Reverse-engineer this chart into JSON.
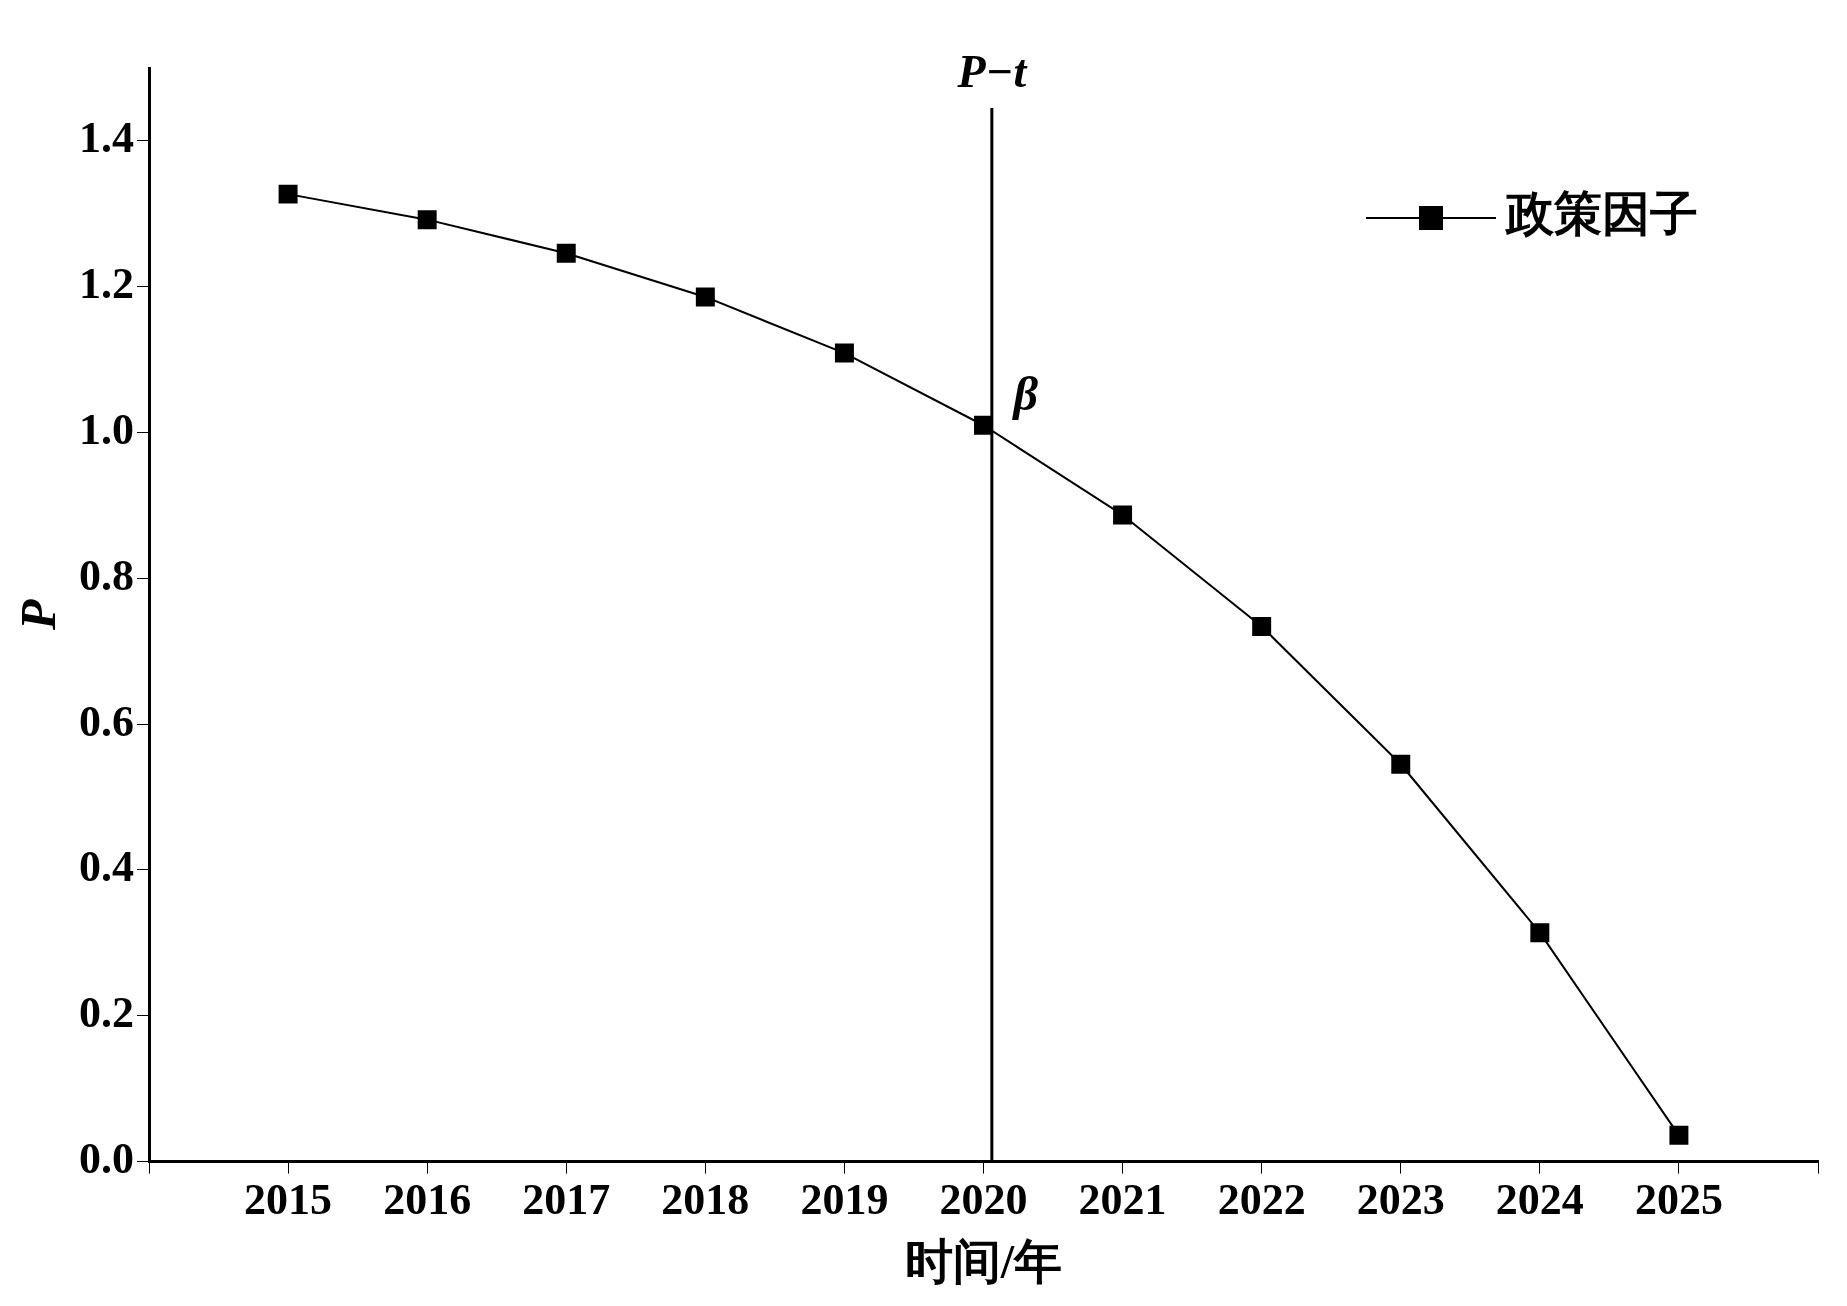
{
  "chart_data": {
    "type": "line",
    "xlabel": "时间/年",
    "ylabel": "P",
    "x": [
      2015,
      2016,
      2017,
      2018,
      2019,
      2020,
      2021,
      2022,
      2023,
      2024,
      2025
    ],
    "series": [
      {
        "name": "政策因子",
        "color": "#000000",
        "values": [
          1.327,
          1.292,
          1.246,
          1.186,
          1.109,
          1.01,
          0.887,
          0.734,
          0.545,
          0.314,
          0.036
        ]
      }
    ],
    "xlim": [
      2014,
      2026
    ],
    "xticks": [
      {
        "value": 2014,
        "label": null
      },
      2015,
      2016,
      2017,
      2018,
      2019,
      2020,
      2021,
      2022,
      2023,
      2024,
      2025,
      {
        "value": 2026,
        "label": null
      }
    ],
    "ylim": [
      0,
      1.5
    ],
    "yticks": [
      {
        "value": 0,
        "label": "0.0"
      },
      {
        "value": 0.2,
        "label": "0.2"
      },
      {
        "value": 0.4,
        "label": "0.4"
      },
      {
        "value": 0.6,
        "label": "0.6"
      },
      {
        "value": 0.8,
        "label": "0.8"
      },
      {
        "value": 1,
        "label": "1.0"
      },
      {
        "value": 1.2,
        "label": "1.2"
      },
      {
        "value": 1.4,
        "label": "1.4"
      }
    ],
    "ref_lines": [
      {
        "axis": "x",
        "value": 2020.06,
        "label": "P−t",
        "color": "#000000"
      }
    ],
    "annotations": [
      {
        "text": "β",
        "x": 2020,
        "y": 1.01
      }
    ],
    "grid": false,
    "legend": "top right",
    "marker": "square",
    "line_style": "solid"
  }
}
